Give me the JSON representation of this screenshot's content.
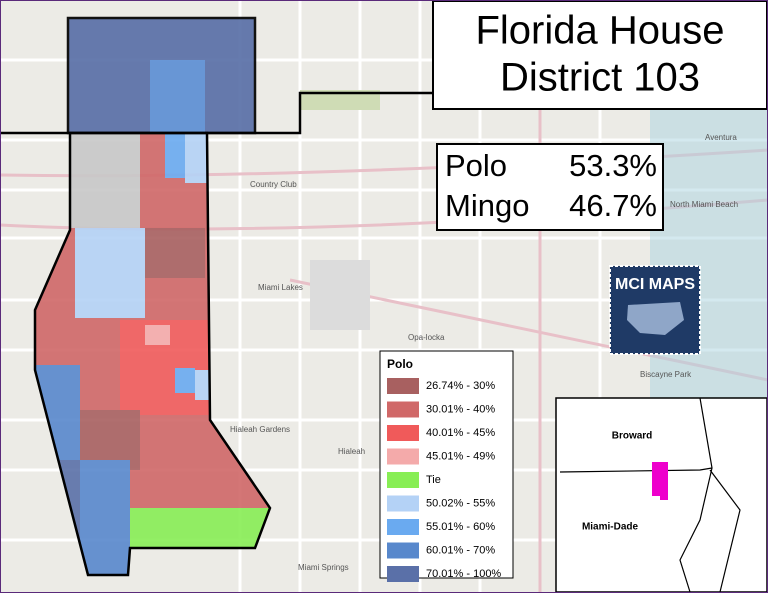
{
  "header": {
    "title_line1": "Florida House",
    "title_line2": "District 103"
  },
  "results": [
    {
      "name": "Polo",
      "share": "53.3%"
    },
    {
      "name": "Mingo",
      "share": "46.7%"
    }
  ],
  "legend": {
    "title": "Polo",
    "items": [
      {
        "label": "26.74% - 30%",
        "color": "#a86060"
      },
      {
        "label": "30.01% - 40%",
        "color": "#d06868"
      },
      {
        "label": "40.01% - 45%",
        "color": "#f05a5a"
      },
      {
        "label": "45.01% - 49%",
        "color": "#f4aaaa"
      },
      {
        "label": "Tie",
        "color": "#88ee55"
      },
      {
        "label": "50.02% - 55%",
        "color": "#b4d2f6"
      },
      {
        "label": "55.01% - 60%",
        "color": "#6aaaf0"
      },
      {
        "label": "60.01% - 70%",
        "color": "#5888cc"
      },
      {
        "label": "70.01% - 100%",
        "color": "#5a70a8"
      }
    ]
  },
  "logo": "MCI MAPS",
  "inset": {
    "north": "Broward",
    "south": "Miami-Dade"
  },
  "places": [
    "Miami Lakes",
    "Hialeah",
    "Hialeah Gardens",
    "Opa-locka",
    "Miami Springs",
    "Biscayne Park",
    "North Miami Beach",
    "Aventura",
    "Country Club"
  ]
}
